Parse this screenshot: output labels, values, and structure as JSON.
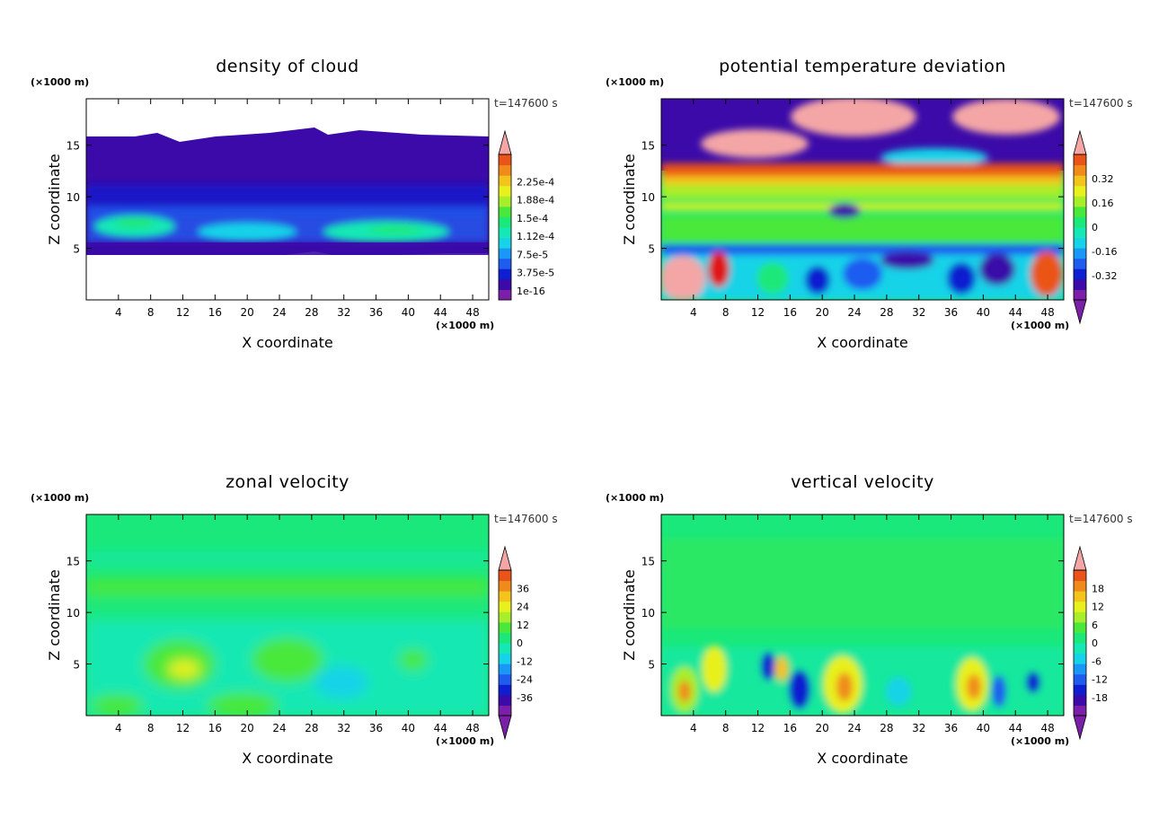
{
  "colors": {
    "scale": [
      "#7a1fa8",
      "#3b0aa8",
      "#0f1ed0",
      "#1e5cf0",
      "#1a98f7",
      "#17d3e8",
      "#15e8b4",
      "#1ae87a",
      "#4ae83a",
      "#a8ee2a",
      "#e8f01e",
      "#f2c41c",
      "#f08a1a",
      "#ea5418",
      "#e01818",
      "#f4a6a6"
    ],
    "cloud_bg": "#ffffff"
  },
  "chart_data": [
    {
      "type": "heatmap",
      "title": "density of cloud",
      "xlabel": "X coordinate",
      "ylabel": "Z coordinate",
      "x_unit": "(×1000 m)",
      "y_unit": "(×1000 m)",
      "time": "t=147600 s",
      "x_ticks": [
        4,
        8,
        12,
        16,
        20,
        24,
        28,
        32,
        36,
        40,
        44,
        48
      ],
      "y_ticks": [
        5,
        10,
        15
      ],
      "xlim": [
        0,
        50
      ],
      "ylim": [
        0,
        19.5
      ],
      "colorbar": [
        "1e-16",
        "3.75e-5",
        "7.5e-5",
        "1.12e-4",
        "1.5e-4",
        "1.88e-4",
        "2.25e-4"
      ],
      "colorbar_extends": [
        "top"
      ]
    },
    {
      "type": "heatmap",
      "title": "potential temperature deviation",
      "xlabel": "X coordinate",
      "ylabel": "Z coordinate",
      "x_unit": "(×1000 m)",
      "y_unit": "(×1000 m)",
      "time": "t=147600 s",
      "x_ticks": [
        4,
        8,
        12,
        16,
        20,
        24,
        28,
        32,
        36,
        40,
        44,
        48
      ],
      "y_ticks": [
        5,
        10,
        15
      ],
      "xlim": [
        0,
        50
      ],
      "ylim": [
        0,
        19.5
      ],
      "colorbar": [
        "-0.32",
        "-0.16",
        "0",
        "0.16",
        "0.32"
      ],
      "colorbar_extends": [
        "top",
        "bottom"
      ]
    },
    {
      "type": "heatmap",
      "title": "zonal velocity",
      "xlabel": "X coordinate",
      "ylabel": "Z coordinate",
      "x_unit": "(×1000 m)",
      "y_unit": "(×1000 m)",
      "time": "t=147600 s",
      "x_ticks": [
        4,
        8,
        12,
        16,
        20,
        24,
        28,
        32,
        36,
        40,
        44,
        48
      ],
      "y_ticks": [
        5,
        10,
        15
      ],
      "xlim": [
        0,
        50
      ],
      "ylim": [
        0,
        19.5
      ],
      "colorbar": [
        "-36",
        "-24",
        "-12",
        "0",
        "12",
        "24",
        "36"
      ],
      "colorbar_extends": [
        "top",
        "bottom"
      ]
    },
    {
      "type": "heatmap",
      "title": "vertical velocity",
      "xlabel": "X coordinate",
      "ylabel": "Z coordinate",
      "x_unit": "(×1000 m)",
      "y_unit": "(×1000 m)",
      "time": "t=147600 s",
      "x_ticks": [
        4,
        8,
        12,
        16,
        20,
        24,
        28,
        32,
        36,
        40,
        44,
        48
      ],
      "y_ticks": [
        5,
        10,
        15
      ],
      "xlim": [
        0,
        50
      ],
      "ylim": [
        0,
        19.5
      ],
      "colorbar": [
        "-18",
        "-12",
        "-6",
        "0",
        "6",
        "12",
        "18"
      ],
      "colorbar_extends": [
        "top",
        "bottom"
      ]
    }
  ]
}
